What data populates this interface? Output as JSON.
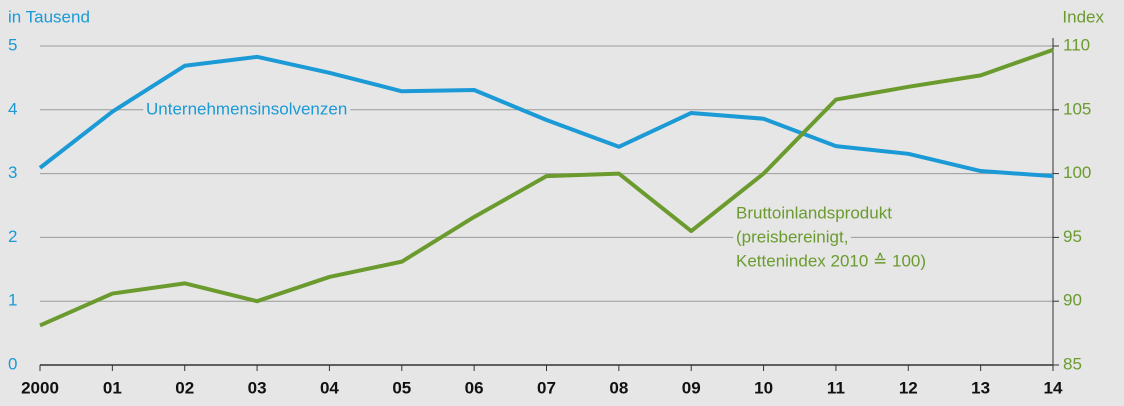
{
  "chart_data": {
    "type": "line",
    "y_axis_label": "in Tausend",
    "y2_axis_label": "Index",
    "categories": [
      "2000",
      "01",
      "02",
      "03",
      "04",
      "05",
      "06",
      "07",
      "08",
      "09",
      "10",
      "11",
      "12",
      "13",
      "14"
    ],
    "series": [
      {
        "name": "Unternehmensinsolvenzen",
        "color": "#1b9ad6",
        "axis": "y",
        "values": [
          3.09,
          3.97,
          4.69,
          4.83,
          4.58,
          4.29,
          4.31,
          3.84,
          3.42,
          3.95,
          3.86,
          3.43,
          3.31,
          3.04,
          2.96
        ]
      },
      {
        "name": [
          "Bruttoinlandsprodukt",
          "(preisbereinigt,",
          "Kettenindex 2010 ≙ 100)"
        ],
        "color": "#6b9b2e",
        "axis": "y2",
        "values": [
          88.1,
          90.6,
          91.4,
          90.0,
          91.9,
          93.1,
          96.6,
          99.8,
          100.0,
          95.5,
          100.0,
          105.8,
          106.8,
          107.7,
          109.7
        ]
      }
    ],
    "ylim": [
      0,
      5
    ],
    "yticks": [
      0,
      1,
      2,
      3,
      4,
      5
    ],
    "y2lim": [
      85,
      110
    ],
    "y2ticks": [
      85,
      90,
      95,
      100,
      105,
      110
    ],
    "grid": true
  }
}
